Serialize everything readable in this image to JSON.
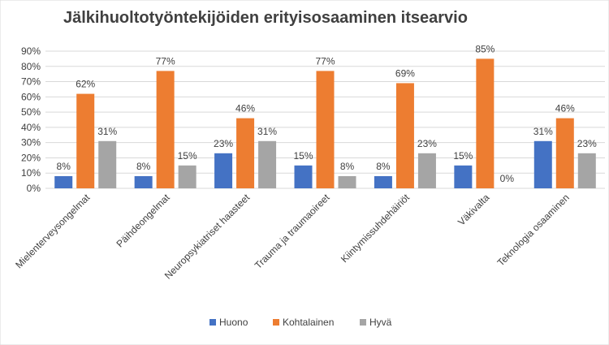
{
  "chart_data": {
    "type": "bar",
    "title": "Jälkihuoltotyöntekijöiden  erityisosaaminen  itsearvio",
    "categories": [
      "Mielenterveysongelmat",
      "Päihdeongelmat",
      "Neuropsykiatriset haasteet",
      "Trauma ja traumaoireet",
      "Kiintymissuhdehäiriöt",
      "Väkivalta",
      "Teknologia osaaminen"
    ],
    "series": [
      {
        "name": "Huono",
        "color": "#4472C4",
        "values": [
          8,
          8,
          23,
          15,
          8,
          15,
          31
        ]
      },
      {
        "name": "Kohtalainen",
        "color": "#ED7D31",
        "values": [
          62,
          77,
          46,
          77,
          69,
          85,
          46
        ]
      },
      {
        "name": "Hyvä",
        "color": "#A5A5A5",
        "values": [
          31,
          15,
          31,
          8,
          23,
          0,
          23
        ]
      }
    ],
    "ylim": [
      0,
      90
    ],
    "yticks": [
      "0%",
      "10%",
      "20%",
      "30%",
      "40%",
      "50%",
      "60%",
      "70%",
      "80%",
      "90%"
    ],
    "unit": "%",
    "grid": true,
    "legend_position": "bottom"
  }
}
